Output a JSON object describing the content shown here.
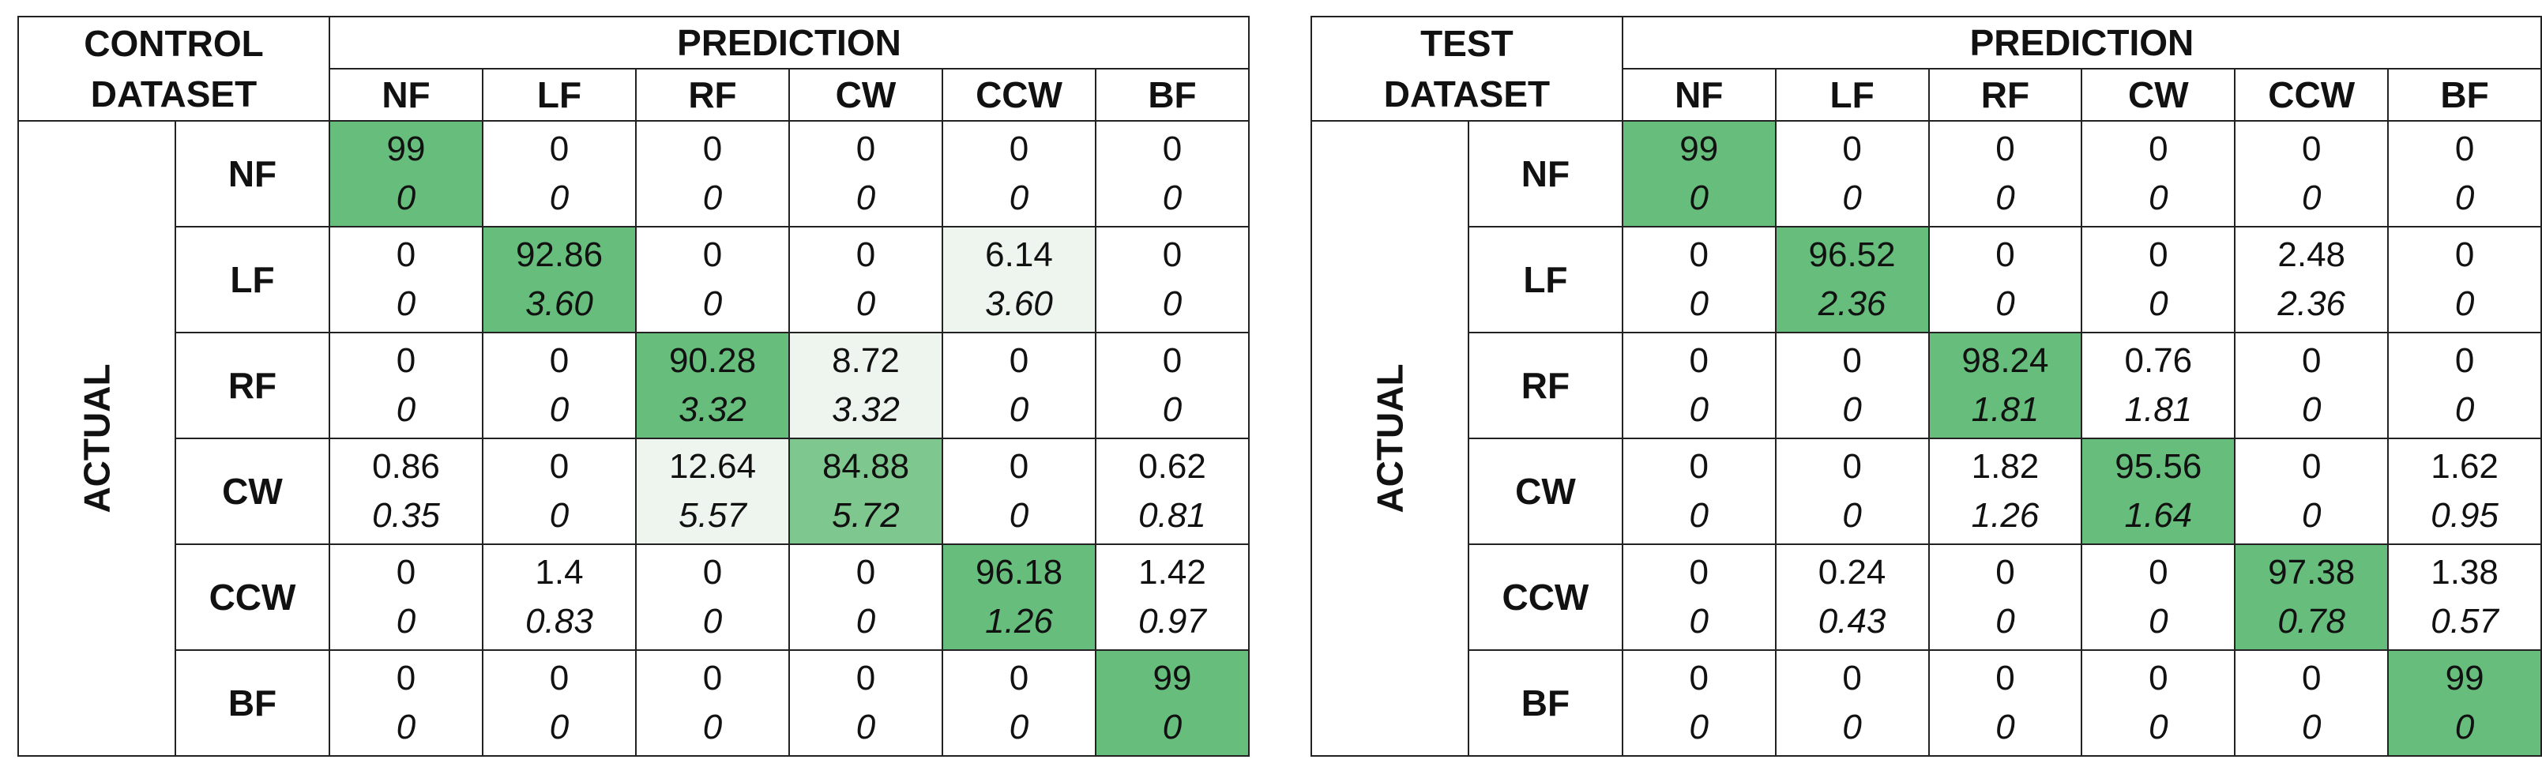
{
  "colors": {
    "diag": "#66bd7c",
    "mid": "#7ec78e",
    "light": "#eef5ef",
    "border": "#222222"
  },
  "chart_data": [
    {
      "type": "table",
      "corner_title": [
        "CONTROL",
        "DATASET"
      ],
      "column_group_label": "PREDICTION",
      "row_group_label": "ACTUAL",
      "classes": [
        "NF",
        "LF",
        "RF",
        "CW",
        "CCW",
        "BF"
      ],
      "values": [
        [
          "99",
          "0",
          "0",
          "0",
          "0",
          "0"
        ],
        [
          "0",
          "92.86",
          "0",
          "0",
          "6.14",
          "0"
        ],
        [
          "0",
          "0",
          "90.28",
          "8.72",
          "0",
          "0"
        ],
        [
          "0.86",
          "0",
          "12.64",
          "84.88",
          "0",
          "0.62"
        ],
        [
          "0",
          "1.4",
          "0",
          "0",
          "96.18",
          "1.42"
        ],
        [
          "0",
          "0",
          "0",
          "0",
          "0",
          "99"
        ]
      ],
      "errors": [
        [
          "0",
          "0",
          "0",
          "0",
          "0",
          "0"
        ],
        [
          "0",
          "3.60",
          "0",
          "0",
          "3.60",
          "0"
        ],
        [
          "0",
          "0",
          "3.32",
          "3.32",
          "0",
          "0"
        ],
        [
          "0.35",
          "0",
          "5.57",
          "5.72",
          "0",
          "0.81"
        ],
        [
          "0",
          "0.83",
          "0",
          "0",
          "1.26",
          "0.97"
        ],
        [
          "0",
          "0",
          "0",
          "0",
          "0",
          "0"
        ]
      ],
      "shading": [
        [
          "diag",
          "",
          "",
          "",
          "",
          ""
        ],
        [
          "",
          "diag",
          "",
          "",
          "light",
          ""
        ],
        [
          "",
          "",
          "diag",
          "light",
          "",
          ""
        ],
        [
          "",
          "",
          "light",
          "mid",
          "",
          ""
        ],
        [
          "",
          "",
          "",
          "",
          "diag",
          ""
        ],
        [
          "",
          "",
          "",
          "",
          "",
          "diag"
        ]
      ]
    },
    {
      "type": "table",
      "corner_title": [
        "TEST",
        "DATASET"
      ],
      "column_group_label": "PREDICTION",
      "row_group_label": "ACTUAL",
      "classes": [
        "NF",
        "LF",
        "RF",
        "CW",
        "CCW",
        "BF"
      ],
      "values": [
        [
          "99",
          "0",
          "0",
          "0",
          "0",
          "0"
        ],
        [
          "0",
          "96.52",
          "0",
          "0",
          "2.48",
          "0"
        ],
        [
          "0",
          "0",
          "98.24",
          "0.76",
          "0",
          "0"
        ],
        [
          "0",
          "0",
          "1.82",
          "95.56",
          "0",
          "1.62"
        ],
        [
          "0",
          "0.24",
          "0",
          "0",
          "97.38",
          "1.38"
        ],
        [
          "0",
          "0",
          "0",
          "0",
          "0",
          "99"
        ]
      ],
      "errors": [
        [
          "0",
          "0",
          "0",
          "0",
          "0",
          "0"
        ],
        [
          "0",
          "2.36",
          "0",
          "0",
          "2.36",
          "0"
        ],
        [
          "0",
          "0",
          "1.81",
          "1.81",
          "0",
          "0"
        ],
        [
          "0",
          "0",
          "1.26",
          "1.64",
          "0",
          "0.95"
        ],
        [
          "0",
          "0.43",
          "0",
          "0",
          "0.78",
          "0.57"
        ],
        [
          "0",
          "0",
          "0",
          "0",
          "0",
          "0"
        ]
      ],
      "shading": [
        [
          "diag",
          "",
          "",
          "",
          "",
          ""
        ],
        [
          "",
          "diag",
          "",
          "",
          "",
          ""
        ],
        [
          "",
          "",
          "diag",
          "",
          "",
          ""
        ],
        [
          "",
          "",
          "",
          "diag",
          "",
          ""
        ],
        [
          "",
          "",
          "",
          "",
          "diag",
          ""
        ],
        [
          "",
          "",
          "",
          "",
          "",
          "diag"
        ]
      ]
    }
  ]
}
